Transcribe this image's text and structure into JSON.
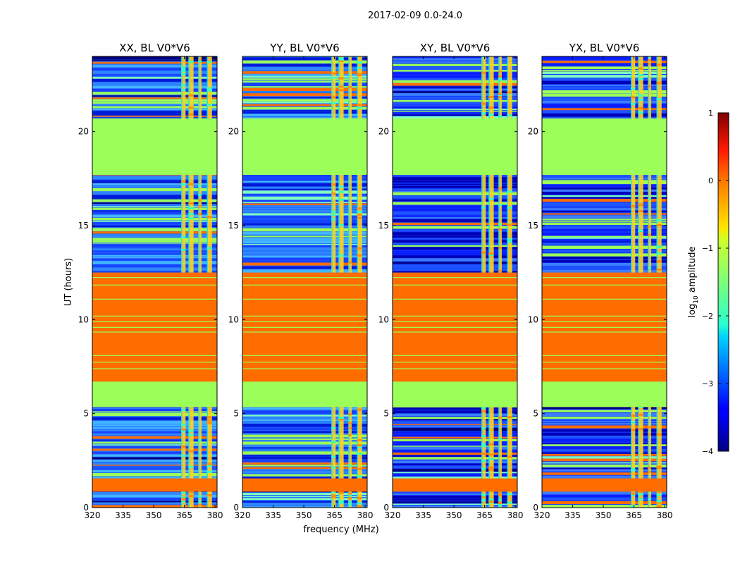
{
  "figure_title": "2017-02-09 0.0-24.0",
  "colors": {
    "flagged_low": "#9cff59",
    "flagged_high": "#ff6d00",
    "rfi_band": "#ffd21f",
    "background": "#ffffff"
  },
  "chart_data": [
    {
      "type": "heatmap",
      "title": "XX, BL V0*V6",
      "xlabel": "",
      "ylabel": "UT (hours)",
      "xlim": [
        320,
        381
      ],
      "ylim": [
        0,
        24
      ],
      "xticks": [
        320,
        335,
        350,
        365,
        380
      ],
      "yticks": [
        0,
        5,
        10,
        15,
        20
      ]
    },
    {
      "type": "heatmap",
      "title": "YY, BL V0*V6",
      "xlabel": "frequency (MHz)",
      "ylabel": "",
      "xlim": [
        320,
        381
      ],
      "ylim": [
        0,
        24
      ],
      "xticks": [
        320,
        335,
        350,
        365,
        380
      ],
      "yticks": [
        0,
        5,
        10,
        15,
        20
      ]
    },
    {
      "type": "heatmap",
      "title": "XY, BL V0*V6",
      "xlabel": "",
      "ylabel": "",
      "xlim": [
        320,
        381
      ],
      "ylim": [
        0,
        24
      ],
      "xticks": [
        320,
        335,
        350,
        365,
        380
      ],
      "yticks": [
        0,
        5,
        10,
        15,
        20
      ]
    },
    {
      "type": "heatmap",
      "title": "YX, BL V0*V6",
      "xlabel": "",
      "ylabel": "",
      "xlim": [
        320,
        381
      ],
      "ylim": [
        0,
        24
      ],
      "xticks": [
        320,
        335,
        350,
        365,
        380
      ],
      "yticks": [
        0,
        5,
        10,
        15,
        20
      ]
    }
  ],
  "colorbar": {
    "label_prefix": "log",
    "label_sub": "10",
    "label_suffix": " amplitude",
    "range": [
      -4,
      1
    ],
    "ticks": [
      1,
      0,
      -1,
      -2,
      -3,
      -4
    ],
    "tick_labels": [
      "1",
      "0",
      "−1",
      "−2",
      "−3",
      "−4"
    ]
  },
  "bands": {
    "flagged_low_hours": [
      [
        5.35,
        6.7
      ],
      [
        17.7,
        20.7
      ]
    ],
    "flagged_high_hours": [
      [
        0.85,
        1.55
      ],
      [
        6.7,
        8.45
      ],
      [
        8.55,
        12.5
      ]
    ],
    "noisy_hours": [
      [
        0,
        0.85
      ],
      [
        1.55,
        5.35
      ],
      [
        12.5,
        17.7
      ],
      [
        20.7,
        24
      ]
    ],
    "rfi_freq_ranges_mhz": [
      [
        363.5,
        365.6
      ],
      [
        367.0,
        369.5
      ],
      [
        371.8,
        373.4
      ],
      [
        376.0,
        378.5
      ]
    ]
  }
}
